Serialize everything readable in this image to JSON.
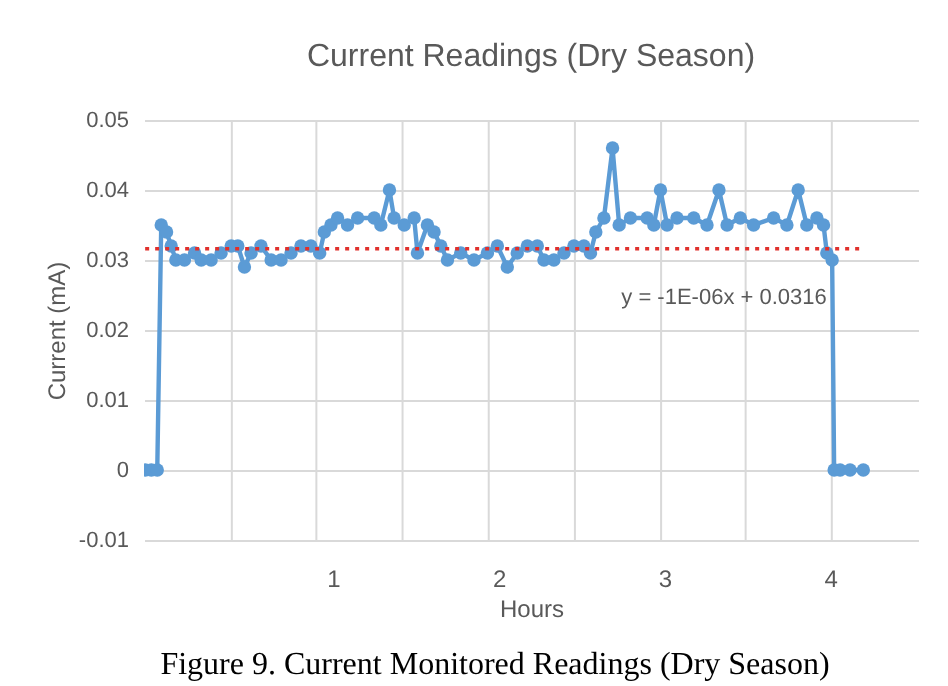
{
  "chart_data": {
    "type": "line",
    "title": "Current Readings (Dry Season)",
    "xlabel": "Hours",
    "ylabel": "Current (mA)",
    "x": [
      -0.133,
      -0.096,
      -0.06,
      -0.036,
      -0.004,
      0.024,
      0.052,
      0.104,
      0.165,
      0.205,
      0.265,
      0.325,
      0.386,
      0.426,
      0.466,
      0.506,
      0.566,
      0.627,
      0.687,
      0.747,
      0.807,
      0.867,
      0.92,
      0.948,
      0.988,
      1.028,
      1.088,
      1.149,
      1.249,
      1.289,
      1.341,
      1.369,
      1.43,
      1.49,
      1.51,
      1.57,
      1.61,
      1.651,
      1.691,
      1.771,
      1.851,
      1.932,
      1.992,
      2.052,
      2.112,
      2.173,
      2.233,
      2.273,
      2.333,
      2.394,
      2.454,
      2.514,
      2.554,
      2.586,
      2.635,
      2.687,
      2.727,
      2.795,
      2.896,
      2.936,
      2.976,
      3.016,
      3.076,
      3.177,
      3.257,
      3.329,
      3.378,
      3.458,
      3.538,
      3.659,
      3.739,
      3.807,
      3.859,
      3.92,
      3.96,
      3.98,
      4.012,
      4.024,
      4.06,
      4.12,
      4.2
    ],
    "series": [
      {
        "color": "#5b9bd5",
        "marker": "circle",
        "line_style": "solid",
        "values": [
          0,
          0,
          0,
          0.035,
          0.034,
          0.032,
          0.03,
          0.03,
          0.031,
          0.03,
          0.03,
          0.031,
          0.032,
          0.032,
          0.029,
          0.031,
          0.032,
          0.03,
          0.03,
          0.031,
          0.032,
          0.032,
          0.031,
          0.034,
          0.035,
          0.036,
          0.035,
          0.036,
          0.036,
          0.035,
          0.04,
          0.036,
          0.035,
          0.036,
          0.031,
          0.035,
          0.034,
          0.032,
          0.03,
          0.031,
          0.03,
          0.031,
          0.032,
          0.029,
          0.031,
          0.032,
          0.032,
          0.03,
          0.03,
          0.031,
          0.032,
          0.032,
          0.031,
          0.034,
          0.036,
          0.046,
          0.035,
          0.036,
          0.036,
          0.035,
          0.04,
          0.035,
          0.036,
          0.036,
          0.035,
          0.04,
          0.035,
          0.036,
          0.035,
          0.036,
          0.035,
          0.04,
          0.035,
          0.036,
          0.035,
          0.031,
          0.03,
          0,
          0,
          0,
          0
        ]
      },
      {
        "color": "#e0302c",
        "marker": "none",
        "line_style": "dotted",
        "x": [
          -0.133,
          4.2
        ],
        "values": [
          0.0316,
          0.0316
        ]
      }
    ],
    "xlim": [
      -0.14,
      4.53
    ],
    "xticks": [
      {
        "value": 0.39,
        "label": null
      },
      {
        "value": 0.9,
        "label": null
      },
      1,
      {
        "value": 1.42,
        "label": null
      },
      {
        "value": 1.94,
        "label": null
      },
      2,
      {
        "value": 2.46,
        "label": null
      },
      {
        "value": 2.98,
        "label": null
      },
      3,
      {
        "value": 3.49,
        "label": null
      },
      {
        "value": 4.01,
        "label": null
      },
      4
    ],
    "ylim": [
      -0.01,
      0.05
    ],
    "yticks": [
      -0.01,
      0,
      0.01,
      0.02,
      0.03,
      0.04,
      0.05
    ],
    "grid": true,
    "annotations": [
      "y = -1E-06x + 0.0316",
      "Figure 9. Current Monitored Readings (Dry Season)"
    ]
  }
}
